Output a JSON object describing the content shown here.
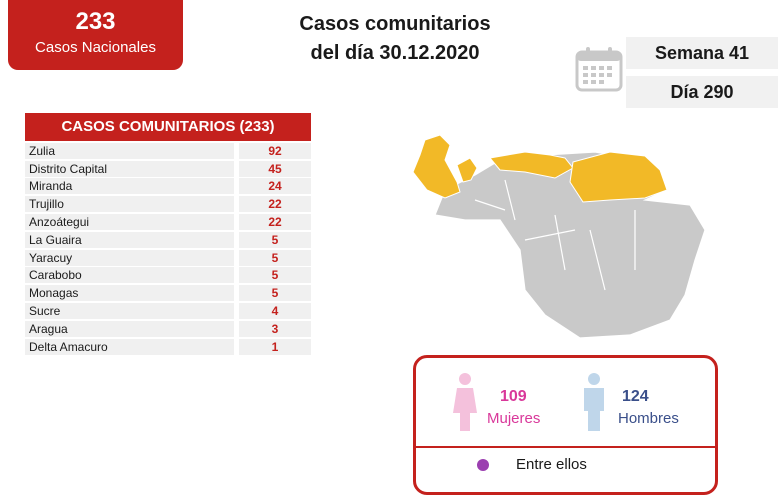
{
  "badge": {
    "count": "233",
    "label": "Casos Nacionales"
  },
  "title": {
    "line1": "Casos comunitarios",
    "line2": "del día 30.12.2020"
  },
  "calendar_icon": "calendar-icon",
  "week": {
    "semana": "Semana 41",
    "dia": "Día 290"
  },
  "table": {
    "header": "CASOS COMUNITARIOS (233)",
    "rows": [
      {
        "name": "Zulia",
        "value": "92"
      },
      {
        "name": "Distrito Capital",
        "value": "45"
      },
      {
        "name": "Miranda",
        "value": "24"
      },
      {
        "name": "Trujillo",
        "value": "22"
      },
      {
        "name": "Anzoátegui",
        "value": "22"
      },
      {
        "name": "La Guaira",
        "value": "5"
      },
      {
        "name": "Yaracuy",
        "value": "5"
      },
      {
        "name": "Carabobo",
        "value": "5"
      },
      {
        "name": "Monagas",
        "value": "5"
      },
      {
        "name": "Sucre",
        "value": "4"
      },
      {
        "name": "Aragua",
        "value": "3"
      },
      {
        "name": "Delta Amacuro",
        "value": "1"
      }
    ]
  },
  "colors": {
    "accent": "#c4211d",
    "female": "#d9389a",
    "male": "#3a4f8a",
    "map_highlight": "#f2b927",
    "map_base": "#c9c9c9"
  },
  "sex": {
    "women": {
      "count": "109",
      "label": "Mujeres",
      "icon": "female-icon"
    },
    "men": {
      "count": "124",
      "label": "Hombres",
      "icon": "male-icon"
    },
    "footer": "Entre ellos"
  }
}
